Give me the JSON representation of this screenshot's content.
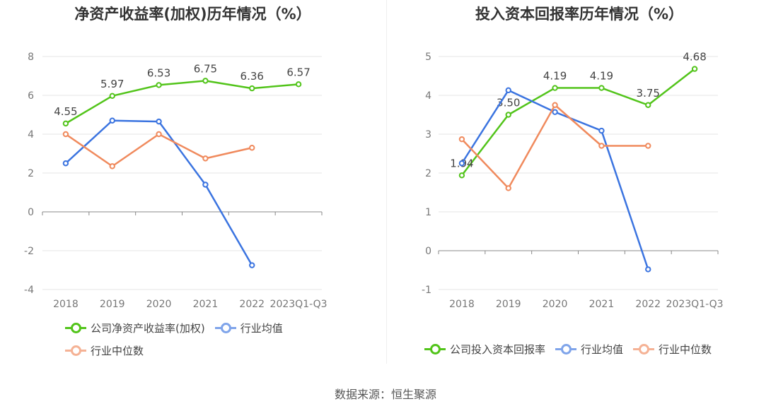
{
  "footer": {
    "source": "数据来源：恒生聚源"
  },
  "colors": {
    "company": "#52c41a",
    "avg": "#3b74e0",
    "median": "#f08a5d",
    "grid": "#e6e6e6",
    "axis": "#888888"
  },
  "chart_data": [
    {
      "type": "line",
      "title": "净资产收益率(加权)历年情况（%）",
      "categories": [
        "2018",
        "2019",
        "2020",
        "2021",
        "2022",
        "2023Q1-Q3"
      ],
      "ylim": [
        -4,
        8
      ],
      "yticks": [
        "8",
        "6",
        "4",
        "2",
        "0",
        "-2",
        "-4"
      ],
      "grid": true,
      "legend_position": "bottom",
      "series": [
        {
          "name": "公司净资产收益率(加权)",
          "key": "company",
          "values": [
            4.55,
            5.97,
            6.53,
            6.75,
            6.36,
            6.57
          ],
          "labels": [
            "4.55",
            "5.97",
            "6.53",
            "6.75",
            "6.36",
            "6.57"
          ]
        },
        {
          "name": "行业均值",
          "key": "avg",
          "values": [
            2.5,
            4.7,
            4.65,
            1.4,
            -2.75,
            null
          ]
        },
        {
          "name": "行业中位数",
          "key": "median",
          "values": [
            4.0,
            2.35,
            4.0,
            2.75,
            3.3,
            null
          ]
        }
      ]
    },
    {
      "type": "line",
      "title": "投入资本回报率历年情况（%）",
      "categories": [
        "2018",
        "2019",
        "2020",
        "2021",
        "2022",
        "2023Q1-Q3"
      ],
      "ylim": [
        -1,
        5
      ],
      "yticks": [
        "5",
        "4",
        "3",
        "2",
        "1",
        "0",
        "-1"
      ],
      "grid": true,
      "legend_position": "bottom",
      "series": [
        {
          "name": "公司投入资本回报率",
          "key": "company",
          "values": [
            1.94,
            3.5,
            4.19,
            4.19,
            3.75,
            4.68
          ],
          "labels": [
            "1.94",
            "3.50",
            "4.19",
            "4.19",
            "3.75",
            "4.68"
          ]
        },
        {
          "name": "行业均值",
          "key": "avg",
          "values": [
            2.25,
            4.13,
            3.57,
            3.09,
            -0.48,
            null
          ]
        },
        {
          "name": "行业中位数",
          "key": "median",
          "values": [
            2.87,
            1.61,
            3.75,
            2.7,
            2.7,
            null
          ]
        }
      ]
    }
  ]
}
